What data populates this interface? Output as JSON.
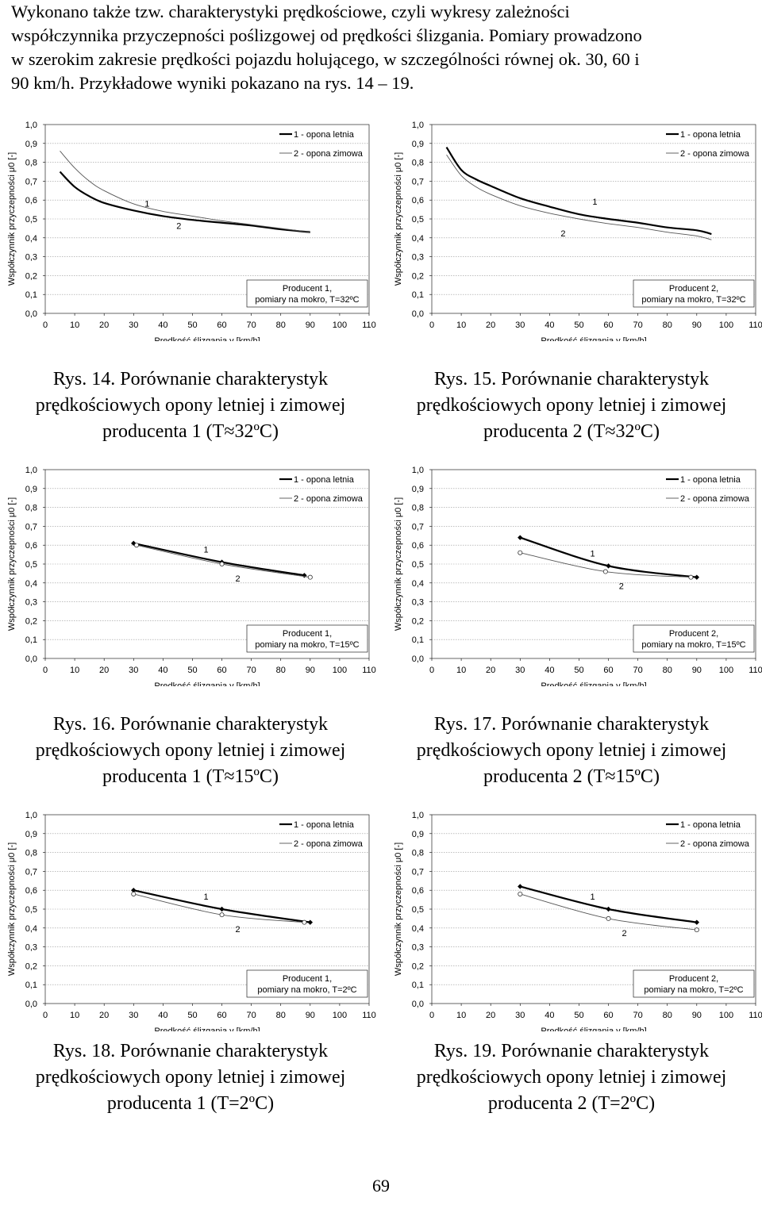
{
  "intro_lines": [
    "Wykonano także tzw. charakterystyki prędkościowe, czyli wykresy zależności",
    "współczynnika przyczepności poślizgowej od prędkości ślizgania. Pomiary prowadzono",
    "w szerokim zakresie prędkości pojazdu holującego, w szczególności równej ok. 30, 60 i",
    "90 km/h. Przykładowe wyniki pokazano na rys. 14 – 19."
  ],
  "colors": {
    "summer": "#000000",
    "winter": "#555555",
    "grid": "#999999"
  },
  "chart_data": [
    {
      "type": "line",
      "ylabel": "Współczynnik przyczepności μ0 [-]",
      "xlabel": "Prędkość ślizgania v [km/h]",
      "xlim": [
        0,
        110
      ],
      "ylim": [
        0,
        1.0
      ],
      "xticks": [
        "0",
        "10",
        "20",
        "30",
        "40",
        "50",
        "60",
        "70",
        "80",
        "90",
        "100",
        "110"
      ],
      "yticks": [
        "0,0",
        "0,1",
        "0,2",
        "0,3",
        "0,4",
        "0,5",
        "0,6",
        "0,7",
        "0,8",
        "0,9",
        "1,0"
      ],
      "legend": [
        "1 - opona letnia",
        "2 - opona zimowa"
      ],
      "curve_labels": [
        "1",
        "2"
      ],
      "info_title": "Producent 1,",
      "info_sub": "pomiary na mokro, T=32ºC",
      "markers": false,
      "series": [
        {
          "name": "1 - opona letnia",
          "x": [
            5,
            10,
            15,
            20,
            30,
            40,
            50,
            60,
            70,
            80,
            90
          ],
          "y": [
            0.75,
            0.67,
            0.62,
            0.585,
            0.545,
            0.515,
            0.495,
            0.48,
            0.465,
            0.445,
            0.43
          ]
        },
        {
          "name": "2 - opona zimowa",
          "x": [
            5,
            10,
            15,
            20,
            30,
            40,
            50,
            60,
            70,
            80,
            90
          ],
          "y": [
            0.86,
            0.77,
            0.7,
            0.65,
            0.58,
            0.54,
            0.515,
            0.49,
            0.47,
            0.45,
            0.43
          ]
        }
      ]
    },
    {
      "type": "line",
      "ylabel": "Współczynnik przyczepności μ0 [-]",
      "xlabel": "Prędkość ślizgania v [km/h]",
      "xlim": [
        0,
        110
      ],
      "ylim": [
        0,
        1.0
      ],
      "xticks": [
        "0",
        "10",
        "20",
        "30",
        "40",
        "50",
        "60",
        "70",
        "80",
        "90",
        "100",
        "110"
      ],
      "yticks": [
        "0,0",
        "0,1",
        "0,2",
        "0,3",
        "0,4",
        "0,5",
        "0,6",
        "0,7",
        "0,8",
        "0,9",
        "1,0"
      ],
      "legend": [
        "1 - opona letnia",
        "2 - opona zimowa"
      ],
      "curve_labels": [
        "2",
        "1"
      ],
      "info_title": "Producent 2,",
      "info_sub": "pomiary na mokro, T=32ºC",
      "markers": false,
      "series": [
        {
          "name": "1 - opona letnia",
          "x": [
            5,
            10,
            15,
            20,
            30,
            40,
            50,
            60,
            70,
            80,
            90,
            95
          ],
          "y": [
            0.88,
            0.76,
            0.71,
            0.675,
            0.61,
            0.565,
            0.525,
            0.5,
            0.48,
            0.455,
            0.44,
            0.42
          ]
        },
        {
          "name": "2 - opona zimowa",
          "x": [
            5,
            10,
            15,
            20,
            30,
            40,
            50,
            60,
            70,
            80,
            90,
            95
          ],
          "y": [
            0.84,
            0.73,
            0.67,
            0.63,
            0.57,
            0.53,
            0.5,
            0.475,
            0.455,
            0.43,
            0.41,
            0.39
          ]
        }
      ]
    },
    {
      "type": "line",
      "ylabel": "Współczynnik przyczepności μ0 [-]",
      "xlabel": "Prędkość ślizgania v [km/h]",
      "xlim": [
        0,
        110
      ],
      "ylim": [
        0,
        1.0
      ],
      "xticks": [
        "0",
        "10",
        "20",
        "30",
        "40",
        "50",
        "60",
        "70",
        "80",
        "90",
        "100",
        "110"
      ],
      "yticks": [
        "0,0",
        "0,1",
        "0,2",
        "0,3",
        "0,4",
        "0,5",
        "0,6",
        "0,7",
        "0,8",
        "0,9",
        "1,0"
      ],
      "legend": [
        "1 - opona letnia",
        "2 - opona zimowa"
      ],
      "curve_labels": [
        "1",
        "2"
      ],
      "info_title": "Producent 1,",
      "info_sub": "pomiary na mokro, T=15ºC",
      "markers": true,
      "series": [
        {
          "name": "1 - opona letnia",
          "x": [
            30,
            60,
            88
          ],
          "y": [
            0.61,
            0.51,
            0.44
          ]
        },
        {
          "name": "2 - opona zimowa",
          "x": [
            31,
            60,
            90
          ],
          "y": [
            0.6,
            0.5,
            0.43
          ]
        }
      ]
    },
    {
      "type": "line",
      "ylabel": "Współczynnik przyczepności μ0 [-]",
      "xlabel": "Prędkość ślizgania v [km/h]",
      "xlim": [
        0,
        110
      ],
      "ylim": [
        0,
        1.0
      ],
      "xticks": [
        "0",
        "10",
        "20",
        "30",
        "40",
        "50",
        "60",
        "70",
        "80",
        "90",
        "100",
        "110"
      ],
      "yticks": [
        "0,0",
        "0,1",
        "0,2",
        "0,3",
        "0,4",
        "0,5",
        "0,6",
        "0,7",
        "0,8",
        "0,9",
        "1,0"
      ],
      "legend": [
        "1 - opona letnia",
        "2 - opona zimowa"
      ],
      "curve_labels": [
        "1",
        "2"
      ],
      "info_title": "Producent 2,",
      "info_sub": "pomiary na mokro, T=15ºC",
      "markers": true,
      "series": [
        {
          "name": "1 - opona letnia",
          "x": [
            30,
            60,
            90
          ],
          "y": [
            0.64,
            0.49,
            0.43
          ]
        },
        {
          "name": "2 - opona zimowa",
          "x": [
            30,
            59,
            88
          ],
          "y": [
            0.56,
            0.46,
            0.43
          ]
        }
      ]
    },
    {
      "type": "line",
      "ylabel": "Współczynnik przyczepności μ0 [-]",
      "xlabel": "Prędkość ślizgania v [km/h]",
      "xlim": [
        0,
        110
      ],
      "ylim": [
        0,
        1.0
      ],
      "xticks": [
        "0",
        "10",
        "20",
        "30",
        "40",
        "50",
        "60",
        "70",
        "80",
        "90",
        "100",
        "110"
      ],
      "yticks": [
        "0,0",
        "0,1",
        "0,2",
        "0,3",
        "0,4",
        "0,5",
        "0,6",
        "0,7",
        "0,8",
        "0,9",
        "1,0"
      ],
      "legend": [
        "1 - opona letnia",
        "2 - opona zimowa"
      ],
      "curve_labels": [
        "1",
        "2"
      ],
      "info_title": "Producent 1,",
      "info_sub": "pomiary na mokro, T=2ºC",
      "markers": true,
      "series": [
        {
          "name": "1 - opona letnia",
          "x": [
            30,
            60,
            90
          ],
          "y": [
            0.6,
            0.5,
            0.43
          ]
        },
        {
          "name": "2 - opona zimowa",
          "x": [
            30,
            60,
            88
          ],
          "y": [
            0.58,
            0.47,
            0.43
          ]
        }
      ]
    },
    {
      "type": "line",
      "ylabel": "Współczynnik przyczepności μ0 [-]",
      "xlabel": "Prędkość ślizgania v [km/h]",
      "xlim": [
        0,
        110
      ],
      "ylim": [
        0,
        1.0
      ],
      "xticks": [
        "0",
        "10",
        "20",
        "30",
        "40",
        "50",
        "60",
        "70",
        "80",
        "90",
        "100",
        "110"
      ],
      "yticks": [
        "0,0",
        "0,1",
        "0,2",
        "0,3",
        "0,4",
        "0,5",
        "0,6",
        "0,7",
        "0,8",
        "0,9",
        "1,0"
      ],
      "legend": [
        "1 - opona letnia",
        "2 - opona zimowa"
      ],
      "curve_labels": [
        "1",
        "2"
      ],
      "info_title": "Producent 2,",
      "info_sub": "pomiary na mokro, T=2ºC",
      "markers": true,
      "series": [
        {
          "name": "1 - opona letnia",
          "x": [
            30,
            60,
            90
          ],
          "y": [
            0.62,
            0.5,
            0.43
          ]
        },
        {
          "name": "2 - opona zimowa",
          "x": [
            30,
            60,
            90
          ],
          "y": [
            0.58,
            0.45,
            0.39
          ]
        }
      ]
    }
  ],
  "captions": [
    {
      "line1": "Rys. 14. Porównanie charakterystyk",
      "line2": "prędkościowych opony letniej i zimowej",
      "line3": "producenta 1 (T≈32ºC)"
    },
    {
      "line1": "Rys. 15. Porównanie charakterystyk",
      "line2": "prędkościowych opony letniej i zimowej",
      "line3": "producenta 2 (T≈32ºC)"
    },
    {
      "line1": "Rys. 16. Porównanie charakterystyk",
      "line2": "prędkościowych opony letniej i zimowej",
      "line3": "producenta 1 (T≈15ºC)"
    },
    {
      "line1": "Rys. 17. Porównanie charakterystyk",
      "line2": "prędkościowych opony letniej i zimowej",
      "line3": "producenta 2 (T≈15ºC)"
    },
    {
      "line1": "Rys. 18. Porównanie charakterystyk",
      "line2": "prędkościowych opony letniej i zimowej",
      "line3": "producenta 1 (T=2ºC)"
    },
    {
      "line1": "Rys. 19. Porównanie charakterystyk",
      "line2": "prędkościowych opony letniej i zimowej",
      "line3": "producenta 2 (T=2ºC)"
    }
  ],
  "page_number": "69"
}
